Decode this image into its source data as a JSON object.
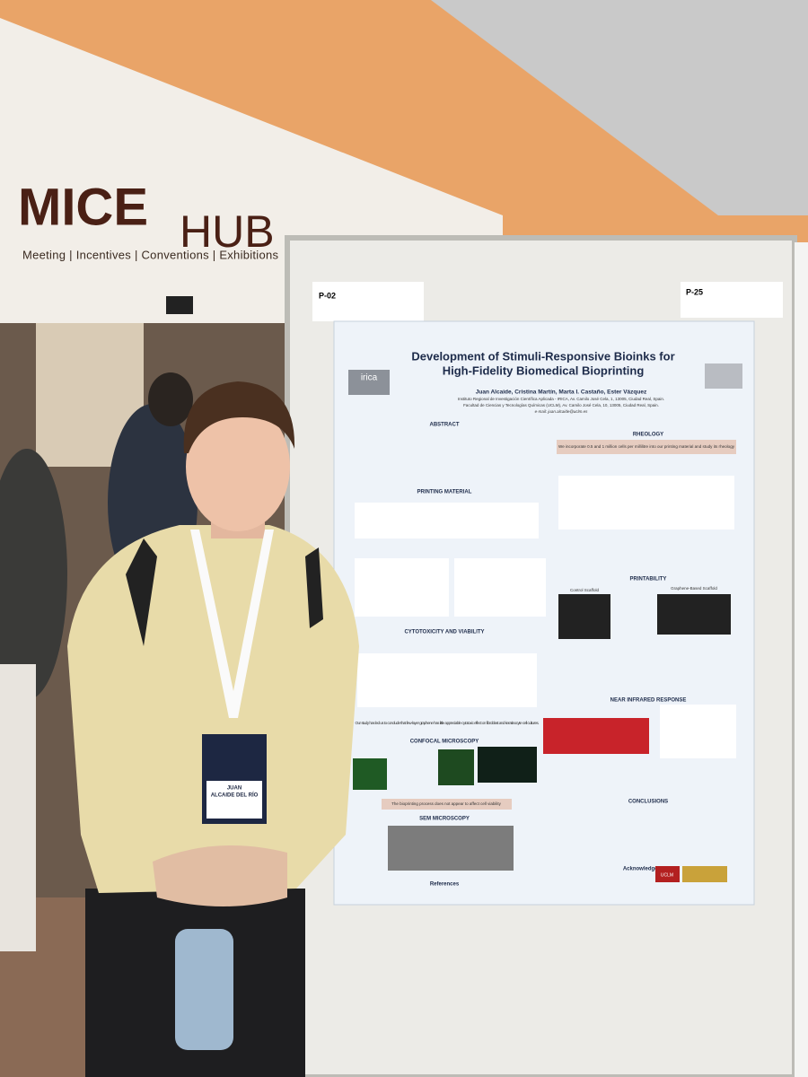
{
  "sign": {
    "brand_left": "MICE",
    "brand_right": "HUB",
    "tagline": "Meeting | Incentives | Conventions | Exhibitions"
  },
  "board_labels": {
    "left": "P-02",
    "right": "P-25"
  },
  "poster": {
    "title_line1": "Development of Stimuli-Responsive Bioinks for",
    "title_line2": "High-Fidelity Biomedical Bioprinting",
    "logo": "irica",
    "authors": "Juan Alcaide, Cristina Martín, Marta I. Castaño, Ester Vázquez",
    "affiliation1": "Instituto Regional de Investigación Científica Aplicada - IRICA, Av. Camilo José Cela, 1, 13005, Ciudad Real, Spain.",
    "affiliation2": "Facultad de Ciencias y Tecnologías Químicas (UCLM), Av. Camilo José Cela, 10, 13005, Ciudad Real, Spain.",
    "email": "e-mail: juan.alcaide@uclm.es",
    "left_sections": [
      "ABSTRACT",
      "PRINTING MATERIAL",
      "CYTOTOXICITY AND VIABILITY",
      "CONFOCAL MICROSCOPY",
      "SEM MICROSCOPY",
      "References"
    ],
    "right_sections": [
      "RHEOLOGY",
      "PRINTABILITY",
      "NEAR INFRARED RESPONSE",
      "CONCLUSIONS",
      "Acknowledgements"
    ],
    "rheology_note": "We incorporate 0.5 and 1 million cells per millilitre into our printing material and study its rheology",
    "control_scaffold": "Control Scaffold",
    "graphene_scaffold": "Graphene-Based Scaffold",
    "cytotox_note": "Our study has led us to conclude that few-layer graphene has little appreciable cytotoxic effect on fibroblast and keratinocyte cell cultures.",
    "viability_note": "The bioprinting process does not appear to affect cell viability",
    "uclm": "UCLM"
  },
  "badge": {
    "name_line1": "JUAN",
    "name_line2": "ALCAIDE DEL RÍO"
  }
}
